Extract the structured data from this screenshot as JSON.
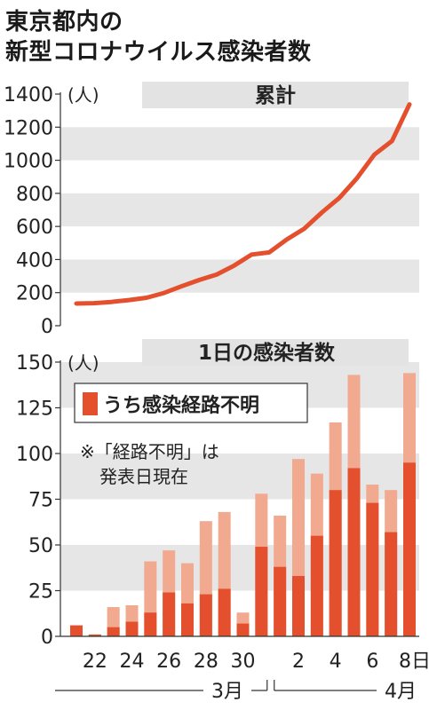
{
  "title_line1": "東京都内の",
  "title_line2": "新型コロナウイルス感染者数",
  "chart_data": [
    {
      "type": "line",
      "title": "累計",
      "unit": "(人)",
      "ylim": [
        0,
        1400
      ],
      "yticks": [
        0,
        200,
        400,
        600,
        800,
        1000,
        1200,
        1400
      ],
      "x": [
        20,
        21,
        22,
        23,
        24,
        25,
        26,
        27,
        28,
        29,
        30,
        31,
        1,
        2,
        3,
        4,
        5,
        6,
        7,
        8
      ],
      "values": [
        134,
        136,
        144,
        155,
        169,
        198,
        238,
        276,
        309,
        363,
        430,
        443,
        521,
        587,
        684,
        773,
        891,
        1034,
        1116,
        1338
      ],
      "color": "#e4502d",
      "grid": "alternating horizontal bands"
    },
    {
      "type": "bar",
      "title": "1日の感染者数",
      "unit": "(人)",
      "ylim": [
        0,
        150
      ],
      "yticks": [
        0,
        25,
        50,
        75,
        100,
        125,
        150
      ],
      "x": [
        21,
        22,
        23,
        24,
        25,
        26,
        27,
        28,
        29,
        30,
        31,
        1,
        2,
        3,
        4,
        5,
        6,
        7,
        8
      ],
      "series": [
        {
          "name": "うち感染経路不明",
          "values": [
            6,
            1,
            5,
            8,
            13,
            24,
            18,
            23,
            26,
            7,
            49,
            38,
            33,
            55,
            80,
            92,
            73,
            57,
            95
          ],
          "color": "#e4502d"
        },
        {
          "values": [
            5,
            1,
            16,
            17,
            41,
            47,
            40,
            63,
            68,
            13,
            78,
            66,
            97,
            89,
            117,
            143,
            83,
            80,
            144
          ],
          "color": "#f1a98f",
          "role": "total"
        }
      ],
      "legend": "top-left",
      "note_line1": "※「経路不明」は",
      "note_line2": "発表日現在",
      "xticks": [
        {
          "day": 22,
          "label": "22"
        },
        {
          "day": 24,
          "label": "24"
        },
        {
          "day": 26,
          "label": "26"
        },
        {
          "day": 28,
          "label": "28"
        },
        {
          "day": 30,
          "label": "30"
        },
        {
          "day": 2,
          "label": "2"
        },
        {
          "day": 4,
          "label": "4"
        },
        {
          "day": 6,
          "label": "6"
        },
        {
          "day": 8,
          "label": "8日"
        }
      ],
      "months": [
        "3月",
        "4月"
      ]
    }
  ],
  "colors": {
    "red": "#e4502d",
    "light": "#f1a98f",
    "band": "#e6e6e6",
    "text": "#1a1a1a"
  }
}
